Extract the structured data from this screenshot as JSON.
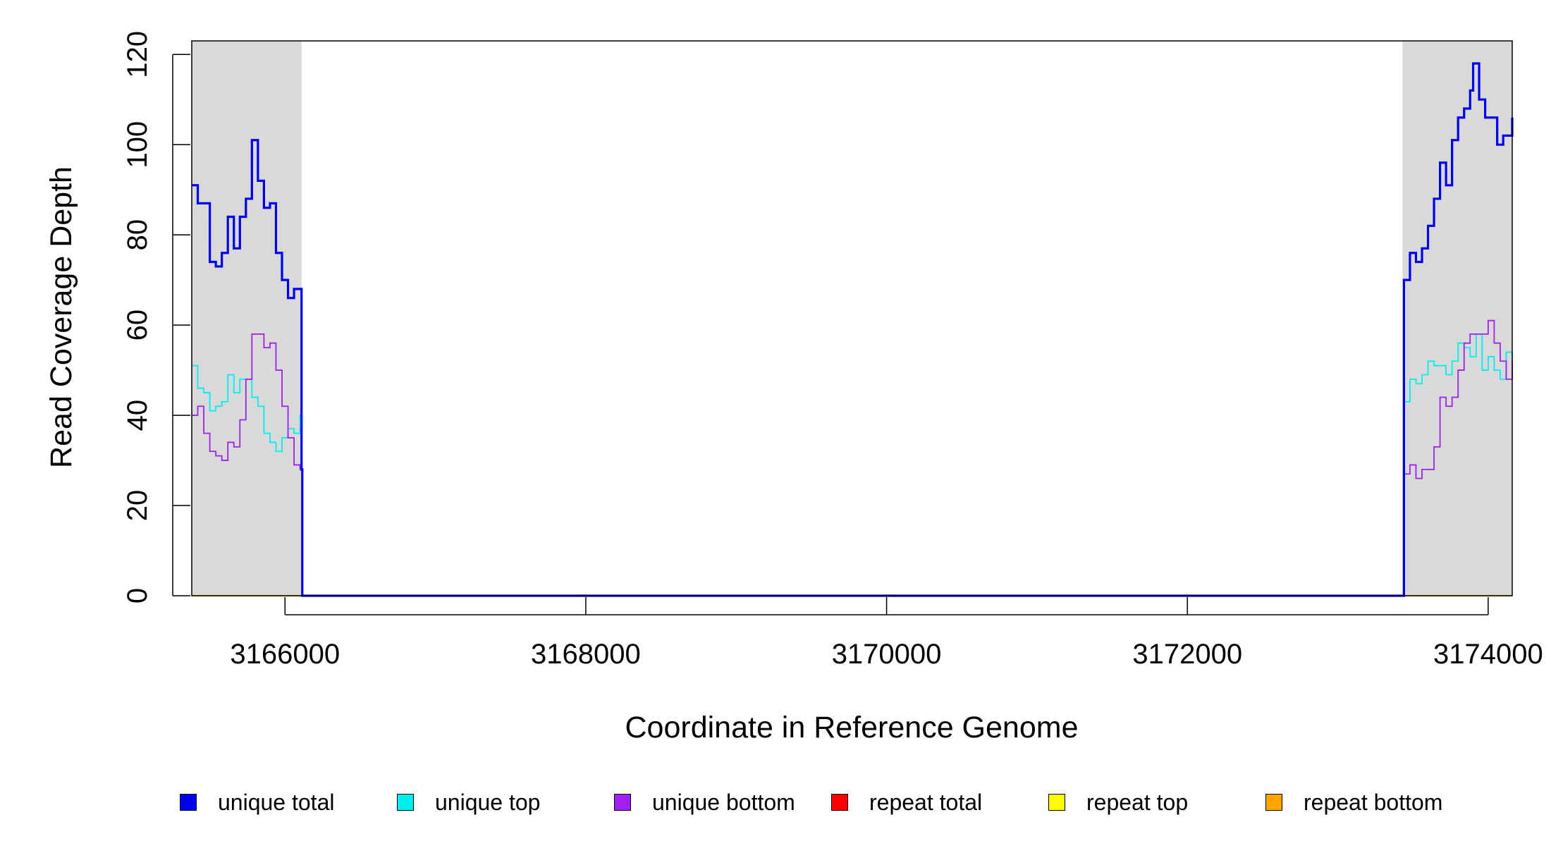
{
  "chart_data": {
    "type": "line",
    "title": "",
    "xlabel": "Coordinate in Reference Genome",
    "ylabel": "Read Coverage Depth",
    "xlim": [
      3165380,
      3174160
    ],
    "ylim": [
      0,
      123
    ],
    "x_ticks": [
      3166000,
      3168000,
      3170000,
      3172000,
      3174000
    ],
    "x_tick_labels": [
      "3166000",
      "3168000",
      "3170000",
      "3172000",
      "3174000"
    ],
    "y_ticks": [
      0,
      20,
      40,
      60,
      80,
      100,
      120
    ],
    "y_tick_labels": [
      "0",
      "20",
      "40",
      "60",
      "80",
      "100",
      "120"
    ],
    "shaded_regions": [
      [
        3165380,
        3166110
      ],
      [
        3173430,
        3174160
      ]
    ],
    "shade_color": "#d9d9d9",
    "legend_position": "bottom",
    "series": [
      {
        "name": "unique total",
        "color": "#0000ee",
        "x": [
          3165380,
          3165420,
          3165460,
          3165500,
          3165540,
          3165580,
          3165620,
          3165660,
          3165700,
          3165740,
          3165780,
          3165820,
          3165860,
          3165900,
          3165940,
          3165980,
          3166020,
          3166060,
          3166100,
          3166110,
          3166115,
          3173430,
          3173440,
          3173480,
          3173520,
          3173560,
          3173600,
          3173640,
          3173680,
          3173720,
          3173760,
          3173800,
          3173840,
          3173880,
          3173900,
          3173940,
          3173980,
          3174020,
          3174060,
          3174100,
          3174160
        ],
        "y": [
          91,
          87,
          87,
          74,
          73,
          76,
          84,
          77,
          84,
          88,
          101,
          92,
          86,
          87,
          76,
          70,
          66,
          68,
          68,
          28,
          0,
          0,
          70,
          76,
          74,
          77,
          82,
          88,
          96,
          91,
          101,
          106,
          108,
          112,
          118,
          110,
          106,
          106,
          100,
          102,
          106
        ]
      },
      {
        "name": "unique top",
        "color": "#00eeee",
        "x": [
          3165380,
          3165420,
          3165460,
          3165500,
          3165540,
          3165580,
          3165620,
          3165660,
          3165700,
          3165740,
          3165780,
          3165820,
          3165860,
          3165900,
          3165940,
          3165980,
          3166020,
          3166060,
          3166100,
          3166110,
          3166115,
          3173430,
          3173440,
          3173480,
          3173520,
          3173560,
          3173600,
          3173640,
          3173680,
          3173720,
          3173760,
          3173800,
          3173840,
          3173880,
          3173920,
          3173960,
          3174000,
          3174040,
          3174080,
          3174120,
          3174160
        ],
        "y": [
          51,
          46,
          45,
          41,
          42,
          43,
          49,
          45,
          48,
          48,
          44,
          42,
          36,
          34,
          32,
          35,
          37,
          36,
          40,
          28,
          0,
          0,
          43,
          48,
          47,
          49,
          52,
          51,
          51,
          49,
          52,
          56,
          55,
          53,
          58,
          50,
          53,
          50,
          48,
          54,
          52
        ]
      },
      {
        "name": "unique bottom",
        "color": "#a020f0",
        "x": [
          3165380,
          3165420,
          3165460,
          3165500,
          3165540,
          3165580,
          3165620,
          3165660,
          3165700,
          3165740,
          3165780,
          3165820,
          3165860,
          3165900,
          3165940,
          3165980,
          3166020,
          3166060,
          3166100,
          3166110,
          3166115,
          3173430,
          3173440,
          3173480,
          3173520,
          3173560,
          3173600,
          3173640,
          3173680,
          3173720,
          3173760,
          3173800,
          3173840,
          3173880,
          3173920,
          3173960,
          3174000,
          3174040,
          3174080,
          3174120,
          3174160
        ],
        "y": [
          40,
          42,
          36,
          32,
          31,
          30,
          34,
          33,
          39,
          48,
          58,
          58,
          55,
          56,
          50,
          42,
          35,
          29,
          28,
          28,
          0,
          0,
          27,
          29,
          26,
          28,
          28,
          33,
          44,
          42,
          44,
          50,
          56,
          58,
          58,
          58,
          61,
          56,
          52,
          48,
          52
        ]
      },
      {
        "name": "repeat total",
        "color": "#ff0000",
        "x": [
          3165380,
          3174160
        ],
        "y": [
          0,
          0
        ]
      },
      {
        "name": "repeat top",
        "color": "#ffff00",
        "x": [
          3165380,
          3174160
        ],
        "y": [
          0,
          0
        ]
      },
      {
        "name": "repeat bottom",
        "color": "#ffa500",
        "x": [
          3165380,
          3174160
        ],
        "y": [
          0,
          0
        ]
      }
    ]
  }
}
